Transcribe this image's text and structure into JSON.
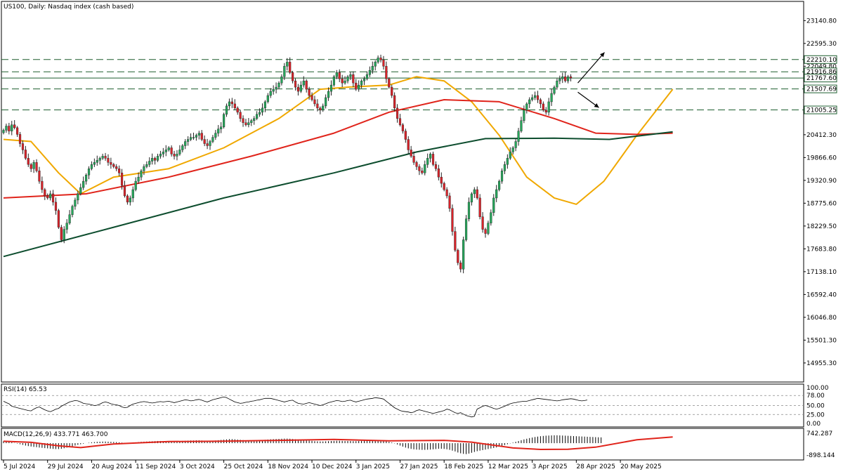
{
  "window": {
    "title": "US100, Daily:  Nasdaq index (cash based)"
  },
  "colors": {
    "bull": "#26a65b",
    "bear": "#d8232a",
    "wick": "#222222",
    "ma_fast": "#f0a800",
    "ma_mid": "#e0241b",
    "ma_slow": "#0d4d2e",
    "level_line": "#1e5e2f",
    "rsi_line": "#000000",
    "macd_signal": "#e0241b",
    "macd_hist": "#000000",
    "grid": "#000000",
    "price_tag_bg": "#ffffff"
  },
  "chart_data": [
    {
      "type": "candlestick",
      "name": "price",
      "title": "US100, Daily:  Nasdaq index (cash based)",
      "ylim": [
        14500,
        23600
      ],
      "yticks": [
        "23140.80",
        "22595.30",
        "22049.80",
        "21507.69",
        "21005.25",
        "20412.30",
        "19866.60",
        "19320.90",
        "18775.60",
        "18229.50",
        "17683.80",
        "17138.10",
        "16592.40",
        "16046.80",
        "15501.30",
        "14955.30"
      ],
      "ytick_values": [
        23140.8,
        22595.3,
        22049.8,
        21507.69,
        21005.25,
        20412.3,
        19866.6,
        19320.9,
        18775.6,
        18229.5,
        17683.8,
        17138.1,
        16592.4,
        16046.8,
        15501.3,
        14955.3
      ],
      "price_tags": [
        {
          "label": "22210.10",
          "value": 22210.1
        },
        {
          "label": "21916.86",
          "value": 21916.86
        },
        {
          "label": "21767.60",
          "value": 21767.6
        },
        {
          "label": "21507.69",
          "value": 21507.69
        },
        {
          "label": "21005.25",
          "value": 21005.25
        }
      ],
      "dashed_levels": [
        22210.1,
        21916.86,
        21507.69,
        21005.25
      ],
      "solid_levels": [
        21767.6
      ],
      "x_labels": [
        "5 Jul 2024",
        "29 Jul 2024",
        "20 Aug 2024",
        "11 Sep 2024",
        "3 Oct 2024",
        "25 Oct 2024",
        "18 Nov 2024",
        "10 Dec 2024",
        "3 Jan 2025",
        "27 Jan 2025",
        "18 Feb 2025",
        "12 Mar 2025",
        "3 Apr 2025",
        "28 Apr 2025",
        "20 May 2025"
      ],
      "x_label_index": [
        0,
        16,
        32,
        48,
        64,
        80,
        96,
        112,
        128,
        144,
        160,
        176,
        192,
        208,
        224
      ],
      "closes": [
        20520,
        20620,
        20500,
        20650,
        20580,
        20420,
        20200,
        20050,
        19850,
        19700,
        19600,
        19750,
        19550,
        19300,
        19100,
        18950,
        18900,
        19000,
        18800,
        18600,
        18200,
        17900,
        18150,
        18300,
        18500,
        18700,
        18850,
        19000,
        19150,
        19300,
        19450,
        19600,
        19700,
        19750,
        19800,
        19850,
        19900,
        19850,
        19750,
        19700,
        19650,
        19600,
        19500,
        19200,
        18950,
        18800,
        18900,
        19100,
        19300,
        19400,
        19550,
        19650,
        19700,
        19780,
        19850,
        19800,
        19900,
        19950,
        20000,
        20050,
        20100,
        19950,
        19900,
        19950,
        20050,
        20150,
        20250,
        20300,
        20350,
        20350,
        20400,
        20450,
        20300,
        20200,
        20150,
        20250,
        20350,
        20450,
        20550,
        20600,
        20900,
        21100,
        21200,
        21150,
        21050,
        20950,
        20800,
        20700,
        20650,
        20700,
        20750,
        20800,
        20900,
        20950,
        21050,
        21200,
        21350,
        21450,
        21500,
        21550,
        21650,
        21800,
        22050,
        22150,
        21900,
        21700,
        21550,
        21450,
        21600,
        21700,
        21500,
        21350,
        21250,
        21150,
        21050,
        21000,
        21100,
        21300,
        21450,
        21600,
        21800,
        21900,
        21750,
        21650,
        21700,
        21800,
        21850,
        21650,
        21500,
        21600,
        21700,
        21750,
        21850,
        21950,
        22050,
        22150,
        22250,
        22200,
        22050,
        21750,
        21550,
        21350,
        21050,
        20800,
        20650,
        20500,
        20300,
        20050,
        19900,
        19750,
        19650,
        19550,
        19500,
        19700,
        19850,
        19950,
        19700,
        19600,
        19400,
        19250,
        19100,
        18950,
        18650,
        18100,
        17650,
        17350,
        17200,
        17900,
        18400,
        18800,
        19000,
        19100,
        18900,
        18450,
        18150,
        18050,
        18300,
        18550,
        18900,
        19100,
        19300,
        19550,
        19700,
        19850,
        20000,
        20100,
        20250,
        20500,
        20750,
        21000,
        21150,
        21250,
        21300,
        21350,
        21250,
        21150,
        21000,
        20950,
        21200,
        21400,
        21550,
        21700,
        21750,
        21800,
        21700,
        21800,
        21767.6
      ],
      "overlays": [
        {
          "name": "MA fast",
          "color": "#f0a800",
          "points": [
            [
              0,
              20300
            ],
            [
              10,
              20250
            ],
            [
              20,
              19500
            ],
            [
              28,
              19000
            ],
            [
              40,
              19400
            ],
            [
              60,
              19600
            ],
            [
              80,
              20100
            ],
            [
              100,
              20800
            ],
            [
              115,
              21500
            ],
            [
              125,
              21550
            ],
            [
              140,
              21600
            ],
            [
              150,
              21800
            ],
            [
              160,
              21700
            ],
            [
              170,
              21200
            ],
            [
              180,
              20400
            ],
            [
              190,
              19400
            ],
            [
              200,
              18900
            ],
            [
              208,
              18750
            ],
            [
              218,
              19300
            ],
            [
              230,
              20400
            ],
            [
              243,
              21500
            ]
          ]
        },
        {
          "name": "MA mid",
          "color": "#e0241b",
          "points": [
            [
              0,
              18900
            ],
            [
              30,
              19000
            ],
            [
              60,
              19400
            ],
            [
              90,
              19900
            ],
            [
              120,
              20450
            ],
            [
              140,
              20950
            ],
            [
              160,
              21250
            ],
            [
              180,
              21200
            ],
            [
              200,
              20800
            ],
            [
              215,
              20450
            ],
            [
              230,
              20420
            ],
            [
              243,
              20450
            ]
          ]
        },
        {
          "name": "MA slow",
          "color": "#0d4d2e",
          "points": [
            [
              0,
              17500
            ],
            [
              40,
              18200
            ],
            [
              80,
              18900
            ],
            [
              120,
              19500
            ],
            [
              150,
              20000
            ],
            [
              175,
              20320
            ],
            [
              200,
              20330
            ],
            [
              220,
              20300
            ],
            [
              243,
              20480
            ]
          ]
        }
      ],
      "arrows": [
        "up",
        "down"
      ]
    },
    {
      "type": "line",
      "name": "rsi",
      "title": "RSI(14) 65.53",
      "ylim": [
        0,
        100
      ],
      "yticks": [
        "100.00",
        "78.00",
        "50.00",
        "25.00",
        "0.00"
      ],
      "ytick_values": [
        100,
        78,
        50,
        25,
        0
      ],
      "levels": [
        78,
        50,
        25
      ],
      "values": [
        62,
        58,
        55,
        48,
        46,
        44,
        42,
        40,
        38,
        36,
        35,
        40,
        44,
        46,
        42,
        38,
        35,
        33,
        36,
        40,
        42,
        48,
        52,
        56,
        60,
        62,
        64,
        63,
        60,
        56,
        55,
        54,
        52,
        50,
        51,
        54,
        58,
        60,
        58,
        55,
        53,
        52,
        50,
        46,
        44,
        45,
        50,
        54,
        56,
        58,
        60,
        61,
        60,
        58,
        57,
        58,
        60,
        61,
        60,
        61,
        62,
        60,
        58,
        60,
        62,
        64,
        66,
        65,
        63,
        64,
        66,
        67,
        65,
        62,
        60,
        63,
        66,
        68,
        70,
        72,
        74,
        72,
        68,
        64,
        60,
        58,
        56,
        57,
        59,
        60,
        62,
        63,
        65,
        66,
        68,
        70,
        70,
        70,
        68,
        66,
        64,
        62,
        60,
        62,
        64,
        65,
        60,
        56,
        55,
        54,
        56,
        58,
        56,
        54,
        52,
        50,
        52,
        55,
        58,
        60,
        62,
        64,
        63,
        61,
        62,
        64,
        65,
        62,
        60,
        62,
        64,
        66,
        68,
        69,
        70,
        72,
        71,
        70,
        68,
        62,
        56,
        50,
        44,
        40,
        36,
        34,
        33,
        32,
        30,
        32,
        36,
        38,
        36,
        34,
        32,
        30,
        28,
        30,
        32,
        34,
        36,
        40,
        38,
        34,
        30,
        28,
        30,
        26,
        22,
        20,
        18,
        20,
        40,
        44,
        48,
        50,
        48,
        45,
        42,
        40,
        42,
        45,
        48,
        52,
        55,
        57,
        58,
        60,
        61,
        62,
        62,
        64,
        66,
        68,
        70,
        69,
        68,
        67,
        66,
        65,
        64,
        63,
        64,
        66,
        67,
        68,
        69,
        68,
        66,
        64,
        63,
        64,
        65.53
      ]
    },
    {
      "type": "bar",
      "name": "macd",
      "title": "MACD(12,26,9) 433.771 463.700",
      "ylim": [
        -1100,
        950
      ],
      "yticks": [
        "742.287",
        "-898.144"
      ],
      "ytick_values": [
        742.287,
        -898.144
      ],
      "histogram": [
        150,
        140,
        110,
        60,
        20,
        -30,
        -80,
        -130,
        -180,
        -220,
        -250,
        -280,
        -300,
        -330,
        -350,
        -370,
        -390,
        -410,
        -430,
        -440,
        -440,
        -420,
        -380,
        -330,
        -280,
        -230,
        -180,
        -130,
        -80,
        -40,
        0,
        30,
        60,
        80,
        100,
        110,
        120,
        120,
        110,
        100,
        90,
        80,
        60,
        40,
        20,
        10,
        20,
        40,
        60,
        80,
        100,
        110,
        120,
        130,
        140,
        150,
        160,
        160,
        150,
        150,
        160,
        160,
        150,
        150,
        160,
        170,
        180,
        190,
        200,
        200,
        210,
        210,
        200,
        190,
        180,
        180,
        190,
        200,
        220,
        240,
        260,
        280,
        300,
        300,
        290,
        270,
        250,
        230,
        210,
        200,
        200,
        200,
        210,
        220,
        230,
        250,
        270,
        290,
        300,
        310,
        320,
        330,
        340,
        340,
        330,
        310,
        290,
        270,
        250,
        230,
        210,
        190,
        170,
        150,
        140,
        130,
        130,
        140,
        150,
        160,
        170,
        180,
        180,
        170,
        160,
        160,
        160,
        150,
        150,
        160,
        170,
        180,
        190,
        200,
        210,
        220,
        230,
        220,
        200,
        150,
        100,
        50,
        -20,
        -100,
        -180,
        -260,
        -330,
        -390,
        -430,
        -460,
        -480,
        -490,
        -500,
        -500,
        -490,
        -480,
        -460,
        -440,
        -420,
        -420,
        -430,
        -460,
        -500,
        -560,
        -620,
        -700,
        -760,
        -800,
        -820,
        -780,
        -720,
        -660,
        -600,
        -560,
        -520,
        -480,
        -440,
        -400,
        -360,
        -320,
        -260,
        -200,
        -140,
        -80,
        -20,
        40,
        100,
        160,
        220,
        280,
        330,
        380,
        420,
        460,
        490,
        520,
        540,
        560,
        570,
        580,
        590,
        590,
        580,
        570,
        560,
        550,
        540,
        530,
        520,
        510,
        500,
        490,
        480,
        470,
        460,
        450,
        440,
        433.771
      ],
      "signal": [
        [
          0,
          140
        ],
        [
          10,
          60
        ],
        [
          20,
          -200
        ],
        [
          28,
          -330
        ],
        [
          40,
          -60
        ],
        [
          60,
          120
        ],
        [
          80,
          150
        ],
        [
          100,
          210
        ],
        [
          120,
          280
        ],
        [
          140,
          170
        ],
        [
          160,
          210
        ],
        [
          170,
          80
        ],
        [
          185,
          -360
        ],
        [
          195,
          -470
        ],
        [
          205,
          -460
        ],
        [
          215,
          -300
        ],
        [
          230,
          250
        ],
        [
          243,
          463.7
        ]
      ]
    }
  ]
}
